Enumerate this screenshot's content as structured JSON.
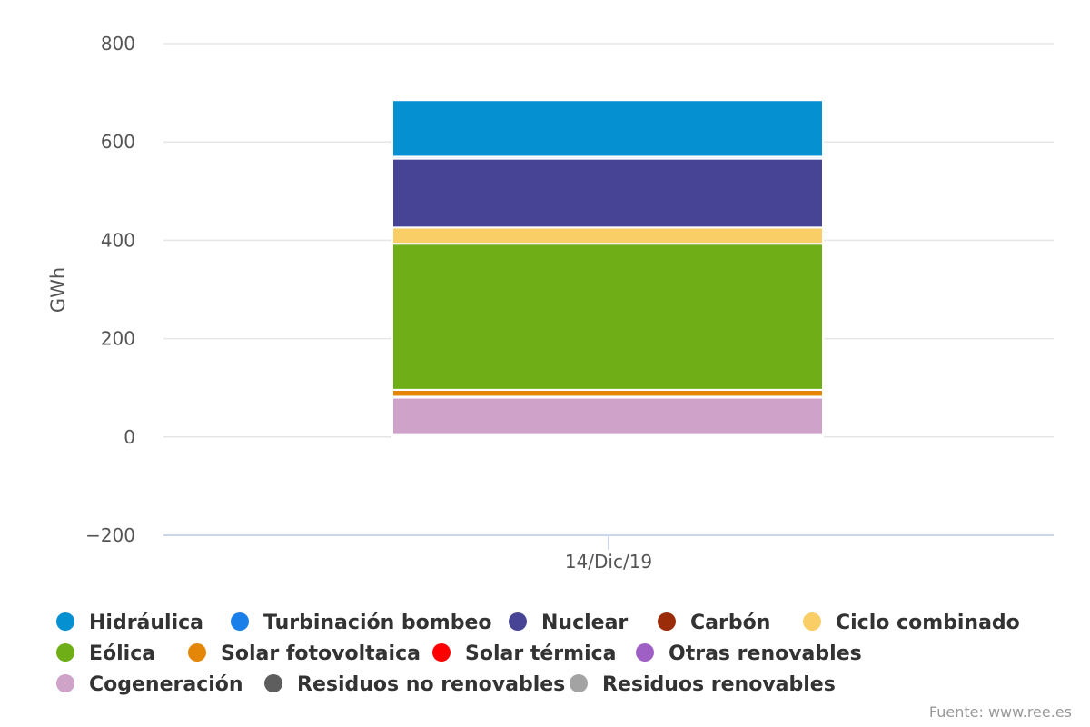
{
  "chart_data": {
    "type": "bar",
    "stacked": true,
    "categories": [
      "14/Dic/19"
    ],
    "ylabel": "GWh",
    "ylim": [
      -200,
      800
    ],
    "yticks": [
      -200,
      0,
      200,
      400,
      600,
      800
    ],
    "grid": true,
    "legend_position": "bottom",
    "series": [
      {
        "name": "Hidráulica",
        "color": "#0590d2",
        "values": [
          115
        ]
      },
      {
        "name": "Turbinación bombeo",
        "color": "#1a7fe8",
        "values": [
          4
        ]
      },
      {
        "name": "Nuclear",
        "color": "#474495",
        "values": [
          140
        ]
      },
      {
        "name": "Carbón",
        "color": "#9a2c0a",
        "values": [
          0
        ]
      },
      {
        "name": "Ciclo combinado",
        "color": "#f9ce66",
        "values": [
          33
        ]
      },
      {
        "name": "Eólica",
        "color": "#6fae17",
        "values": [
          297
        ]
      },
      {
        "name": "Solar fotovoltaica",
        "color": "#e48608",
        "values": [
          14
        ]
      },
      {
        "name": "Solar térmica",
        "color": "#ff0000",
        "values": [
          0
        ]
      },
      {
        "name": "Otras renovables",
        "color": "#9e60c5",
        "values": [
          2
        ]
      },
      {
        "name": "Cogeneración",
        "color": "#cfa2c9",
        "values": [
          76
        ]
      },
      {
        "name": "Residuos no renovables",
        "color": "#5e5e5e",
        "values": [
          3
        ]
      },
      {
        "name": "Residuos renovables",
        "color": "#a3a3a3",
        "values": [
          1
        ]
      }
    ],
    "credit": "Fuente: www.ree.es"
  }
}
